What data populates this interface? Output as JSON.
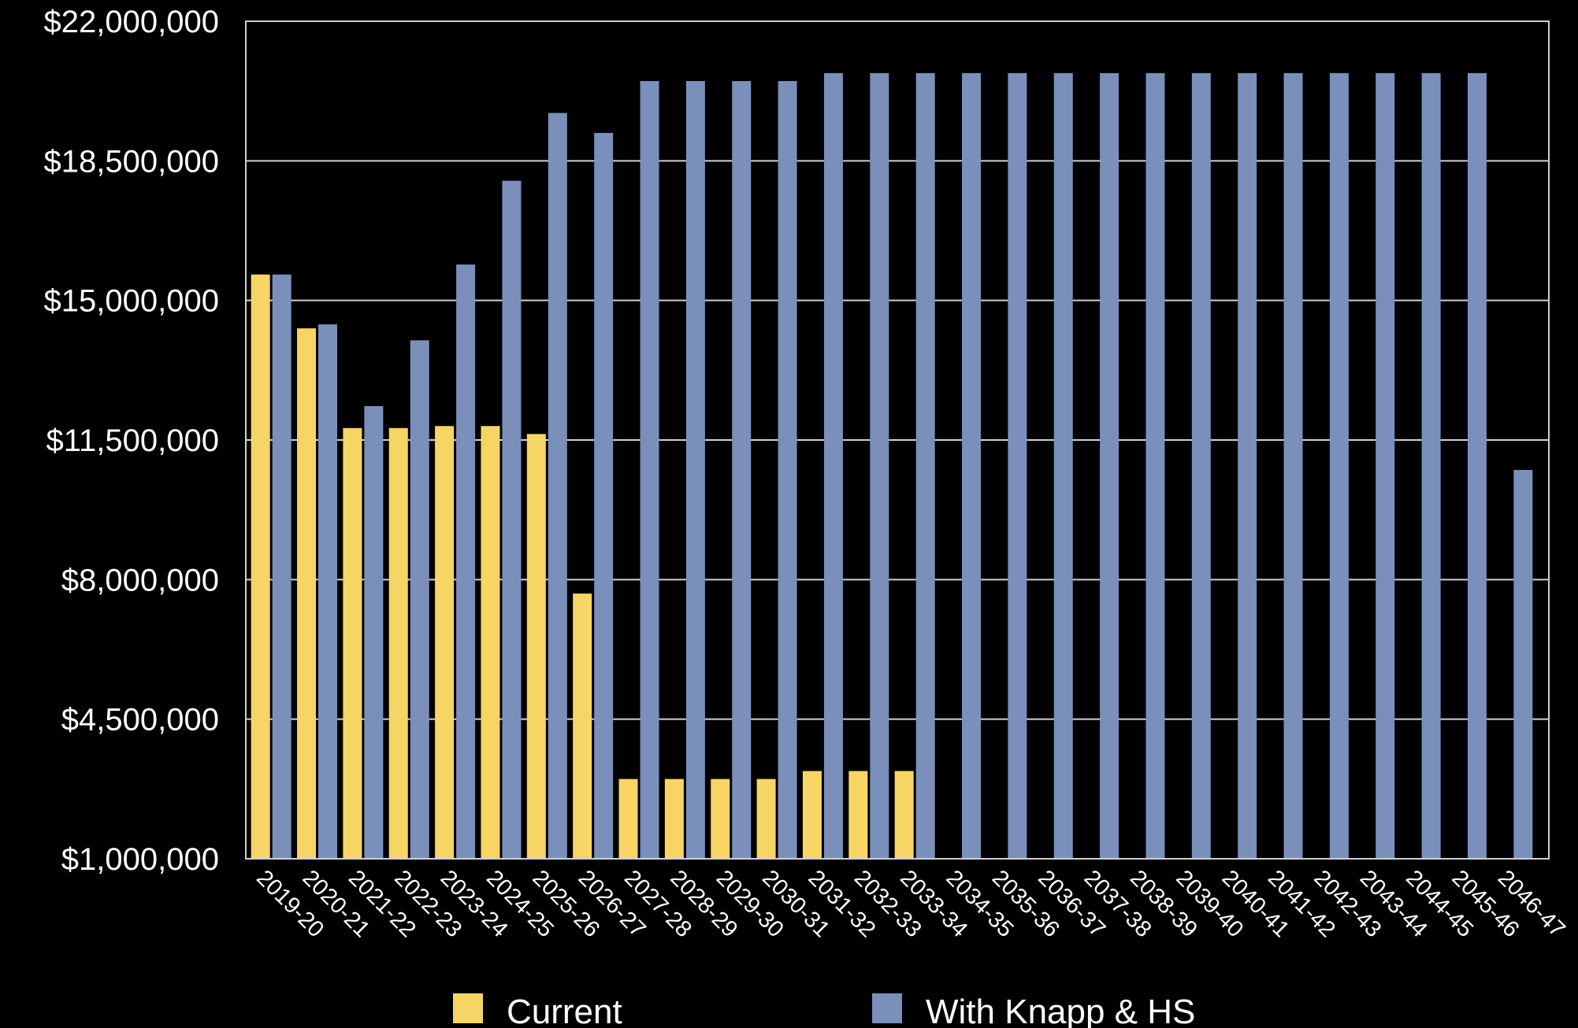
{
  "chart_data": {
    "type": "bar",
    "title": "",
    "xlabel": "",
    "ylabel": "",
    "ylim": [
      1000000,
      22000000
    ],
    "yticks": [
      1000000,
      4500000,
      8000000,
      11500000,
      15000000,
      18500000,
      22000000
    ],
    "ytick_labels": [
      "$1,000,000",
      "$4,500,000",
      "$8,000,000",
      "$11,500,000",
      "$15,000,000",
      "$18,500,000",
      "$22,000,000"
    ],
    "grid": true,
    "legend_position": "bottom",
    "categories": [
      "2019-20",
      "2020-21",
      "2021-22",
      "2022-23",
      "2023-24",
      "2024-25",
      "2025-26",
      "2026-27",
      "2027-28",
      "2028-29",
      "2029-30",
      "2030-31",
      "2031-32",
      "2032-33",
      "2033-34",
      "2034-35",
      "2035-36",
      "2036-37",
      "2037-38",
      "2038-39",
      "2039-40",
      "2040-41",
      "2041-42",
      "2042-43",
      "2043-44",
      "2044-45",
      "2045-46",
      "2046-47"
    ],
    "series": [
      {
        "name": "Current",
        "color": "#f7d565",
        "values": [
          15650000,
          14300000,
          11800000,
          11800000,
          11850000,
          11850000,
          11650000,
          7650000,
          3000000,
          3000000,
          3000000,
          3000000,
          3200000,
          3200000,
          3200000,
          null,
          null,
          null,
          null,
          null,
          null,
          null,
          null,
          null,
          null,
          null,
          null,
          null
        ]
      },
      {
        "name": "With Knapp & HS",
        "color": "#7b8fbb",
        "values": [
          15650000,
          14400000,
          12350000,
          14000000,
          15900000,
          18000000,
          19700000,
          19200000,
          20500000,
          20500000,
          20500000,
          20500000,
          20700000,
          20700000,
          20700000,
          20700000,
          20700000,
          20700000,
          20700000,
          20700000,
          20700000,
          20700000,
          20700000,
          20700000,
          20700000,
          20700000,
          20700000,
          10750000
        ]
      }
    ]
  }
}
